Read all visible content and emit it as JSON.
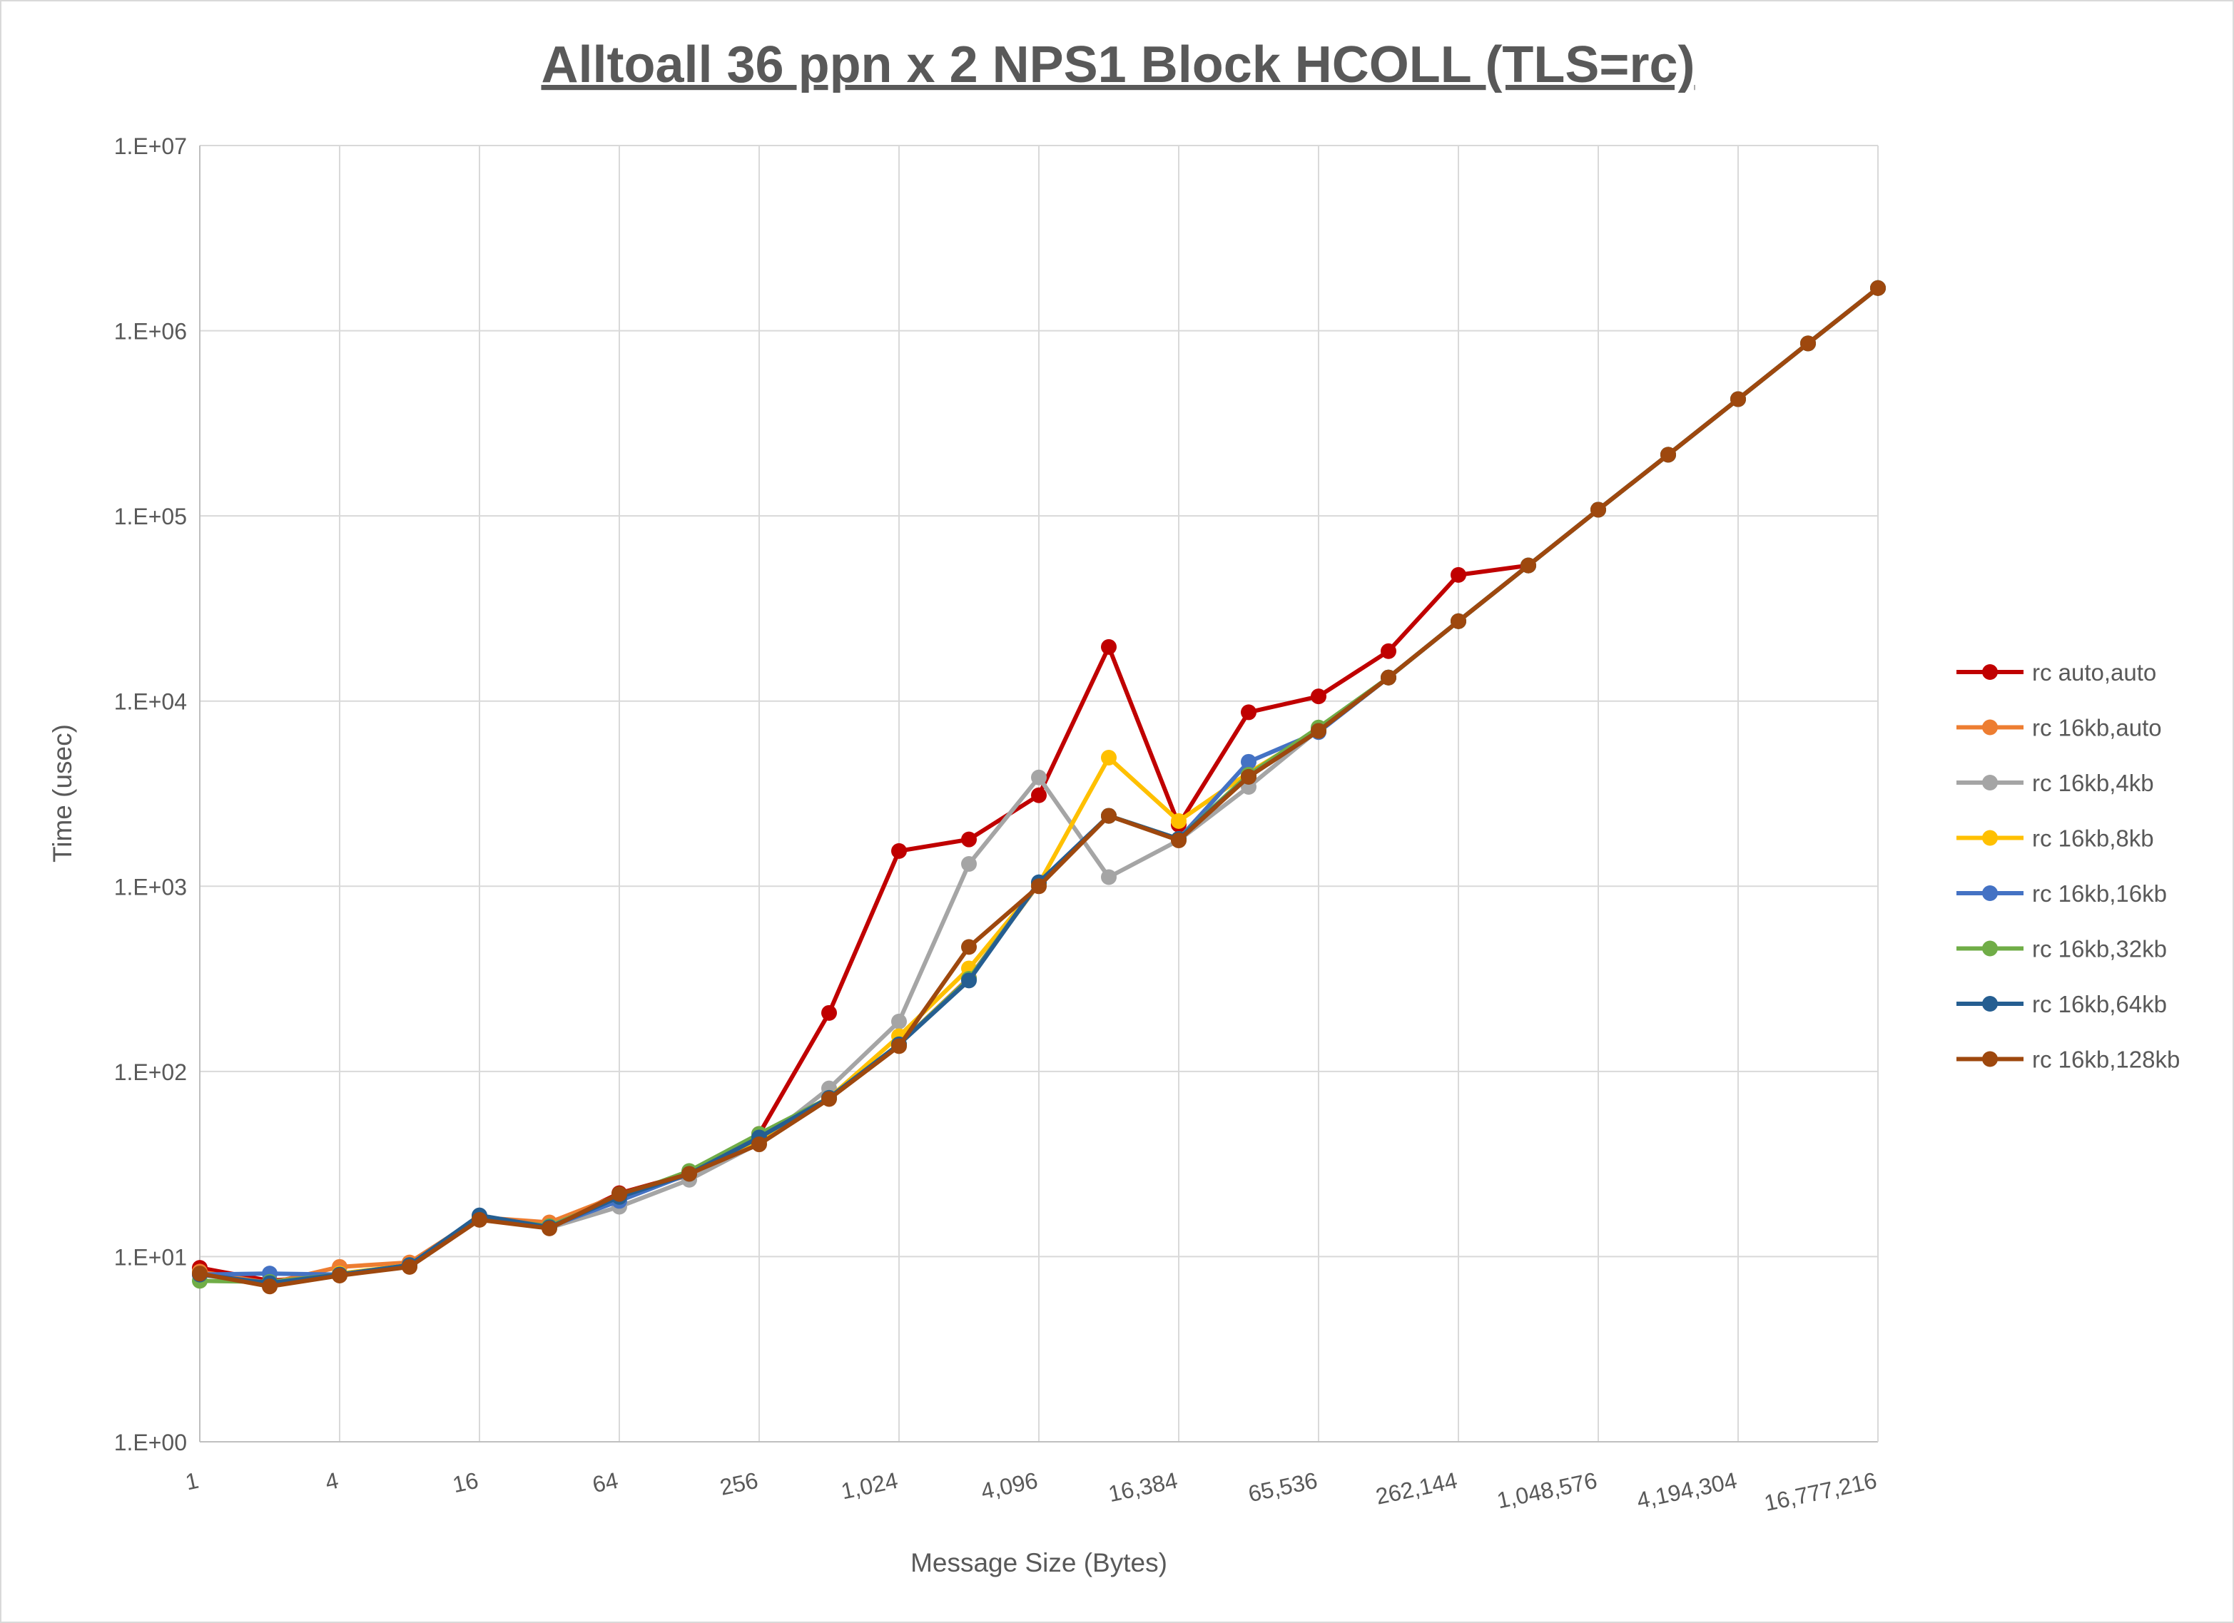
{
  "chart_data": {
    "type": "line",
    "title": "Alltoall 36 ppn x 2 NPS1 Block HCOLL (TLS=rc)",
    "xlabel": "Message Size (Bytes)",
    "ylabel": "Time (usec)",
    "x_scale": "log2",
    "y_scale": "log10",
    "ylim": [
      1,
      10000000
    ],
    "grid": true,
    "legend_position": "right",
    "x": [
      1,
      2,
      4,
      8,
      16,
      32,
      64,
      128,
      256,
      512,
      1024,
      2048,
      4096,
      8192,
      16384,
      32768,
      65536,
      131072,
      262144,
      524288,
      1048576,
      2097152,
      4194304,
      8388608,
      16777216
    ],
    "x_tick_labels": [
      "1",
      "4",
      "16",
      "64",
      "256",
      "1,024",
      "4,096",
      "16,384",
      "65,536",
      "262,144",
      "1,048,576",
      "4,194,304",
      "16,777,216"
    ],
    "x_tick_values": [
      1,
      4,
      16,
      64,
      256,
      1024,
      4096,
      16384,
      65536,
      262144,
      1048576,
      4194304,
      16777216
    ],
    "y_tick_labels": [
      "1.E+00",
      "1.E+01",
      "1.E+02",
      "1.E+03",
      "1.E+04",
      "1.E+05",
      "1.E+06",
      "1.E+07"
    ],
    "y_tick_values": [
      1,
      10,
      100,
      1000,
      10000,
      100000,
      1000000,
      10000000
    ],
    "series": [
      {
        "name": "rc auto,auto",
        "color": "#C00000",
        "values": [
          8.7,
          7.4,
          8.0,
          9.0,
          16.5,
          14.5,
          22,
          28,
          46,
          207,
          1550,
          1790,
          3100,
          19600,
          2150,
          8700,
          10600,
          18600,
          48000,
          54000,
          108000,
          214000,
          427000,
          854000,
          1700000
        ]
      },
      {
        "name": "rc 16kb,auto",
        "color": "#ED7D31",
        "values": [
          8.3,
          7.2,
          8.8,
          9.3,
          16.3,
          15.3,
          21.5,
          27.5,
          42,
          72,
          140,
          320,
          1030,
          2400,
          1800,
          3900,
          7000,
          13400,
          27000,
          54000,
          108000,
          214000,
          427000,
          854000,
          1700000
        ]
      },
      {
        "name": "rc 16kb,4kb",
        "color": "#A5A5A5",
        "values": [
          8.0,
          7.1,
          8.0,
          8.9,
          16.0,
          14.3,
          18.6,
          26,
          41,
          81,
          186,
          1320,
          3870,
          1120,
          1770,
          3440,
          7000,
          13400,
          27000,
          54000,
          108000,
          214000,
          427000,
          854000,
          1700000
        ]
      },
      {
        "name": "rc 16kb,8kb",
        "color": "#FFC000",
        "values": [
          8.1,
          7.0,
          8.1,
          9.0,
          16.0,
          14.5,
          21,
          28,
          42,
          72,
          155,
          360,
          1030,
          4950,
          2250,
          4100,
          7000,
          13400,
          27000,
          54000,
          108000,
          214000,
          427000,
          854000,
          1700000
        ]
      },
      {
        "name": "rc 16kb,16kb",
        "color": "#4472C4",
        "values": [
          8.0,
          8.1,
          8.0,
          9.0,
          16.5,
          14.5,
          20,
          28,
          44,
          72,
          140,
          316,
          1050,
          2400,
          1800,
          4700,
          6800,
          13400,
          27000,
          54000,
          108000,
          214000,
          427000,
          854000,
          1700000
        ]
      },
      {
        "name": "rc 16kb,32kb",
        "color": "#70AD47",
        "values": [
          7.4,
          7.3,
          8.0,
          9.0,
          16.3,
          14.6,
          21,
          29,
          46,
          72,
          140,
          316,
          1040,
          2400,
          1800,
          4000,
          7200,
          13400,
          27000,
          54000,
          108000,
          214000,
          427000,
          854000,
          1700000
        ]
      },
      {
        "name": "rc 16kb,64kb",
        "color": "#255E91",
        "values": [
          8.0,
          7.2,
          8.0,
          9.0,
          16.7,
          14.4,
          21,
          28,
          44,
          72,
          140,
          310,
          1050,
          2400,
          1800,
          3900,
          6900,
          13400,
          27000,
          54000,
          108000,
          214000,
          427000,
          854000,
          1700000
        ]
      },
      {
        "name": "rc 16kb,128kb",
        "color": "#9E480E",
        "values": [
          8.1,
          6.9,
          7.9,
          8.8,
          15.8,
          14.2,
          21.8,
          28,
          40.4,
          71,
          137,
          470,
          1000,
          2400,
          1770,
          3900,
          6900,
          13400,
          27000,
          54000,
          108000,
          214000,
          427000,
          854000,
          1700000
        ]
      }
    ]
  }
}
